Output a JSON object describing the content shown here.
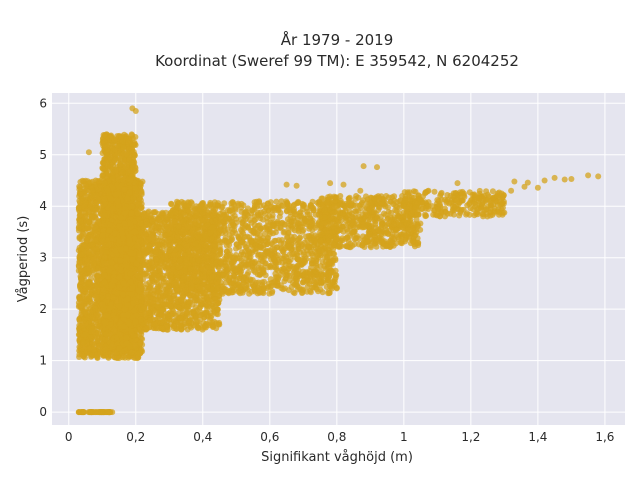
{
  "chart_data": {
    "type": "scatter",
    "title": "År 1979 - 2019",
    "subtitle": "Koordinat (Sweref 99 TM): E 359542, N 6204252",
    "xlabel": "Signifikant våghöjd (m)",
    "ylabel": "Vågperiod (s)",
    "xlim": [
      -0.05,
      1.66
    ],
    "ylim": [
      -0.25,
      6.2
    ],
    "x_ticks": [
      0,
      0.2,
      0.4,
      0.6,
      0.8,
      1,
      1.2,
      1.4,
      1.6
    ],
    "x_tick_labels": [
      "0",
      "0,2",
      "0,4",
      "0,6",
      "0,8",
      "1",
      "1,2",
      "1,4",
      "1,6"
    ],
    "y_ticks": [
      0,
      1,
      2,
      3,
      4,
      5,
      6
    ],
    "y_tick_labels": [
      "0",
      "1",
      "2",
      "3",
      "4",
      "5",
      "6"
    ],
    "grid": true,
    "marker_color": "#d4a31c",
    "plot_background": "#e5e5ef",
    "regions": [
      {
        "x": [
          0.03,
          0.13
        ],
        "y": [
          0,
          0
        ],
        "n": 60
      },
      {
        "x": [
          0.03,
          0.07
        ],
        "y": [
          1.35,
          1.65
        ],
        "n": 60
      },
      {
        "x": [
          0.03,
          0.22
        ],
        "y": [
          1.05,
          4.5
        ],
        "n": 2200
      },
      {
        "x": [
          0.1,
          0.2
        ],
        "y": [
          1.15,
          5.4
        ],
        "n": 1600
      },
      {
        "x": [
          0.15,
          0.45
        ],
        "y": [
          1.6,
          3.9
        ],
        "n": 1600
      },
      {
        "x": [
          0.3,
          0.8
        ],
        "y": [
          2.3,
          4.1
        ],
        "n": 1500
      },
      {
        "x": [
          0.75,
          1.05
        ],
        "y": [
          3.2,
          4.2
        ],
        "n": 600
      },
      {
        "x": [
          1.0,
          1.3
        ],
        "y": [
          3.8,
          4.3
        ],
        "n": 250
      }
    ],
    "points": [
      {
        "x": 0.19,
        "y": 5.9
      },
      {
        "x": 0.2,
        "y": 5.85
      },
      {
        "x": 0.06,
        "y": 5.05
      },
      {
        "x": 0.88,
        "y": 4.78
      },
      {
        "x": 0.92,
        "y": 4.76
      },
      {
        "x": 0.65,
        "y": 4.42
      },
      {
        "x": 0.68,
        "y": 4.4
      },
      {
        "x": 0.78,
        "y": 4.45
      },
      {
        "x": 0.82,
        "y": 4.42
      },
      {
        "x": 0.87,
        "y": 4.3
      },
      {
        "x": 1.16,
        "y": 4.45
      },
      {
        "x": 1.33,
        "y": 4.48
      },
      {
        "x": 1.37,
        "y": 4.46
      },
      {
        "x": 1.42,
        "y": 4.5
      },
      {
        "x": 1.45,
        "y": 4.55
      },
      {
        "x": 1.48,
        "y": 4.52
      },
      {
        "x": 1.5,
        "y": 4.53
      },
      {
        "x": 1.55,
        "y": 4.6
      },
      {
        "x": 1.58,
        "y": 4.58
      },
      {
        "x": 1.4,
        "y": 4.36
      },
      {
        "x": 1.36,
        "y": 4.38
      },
      {
        "x": 1.32,
        "y": 4.3
      },
      {
        "x": 1.28,
        "y": 4.25
      },
      {
        "x": 1.24,
        "y": 4.2
      },
      {
        "x": 0.36,
        "y": 1.78
      },
      {
        "x": 0.38,
        "y": 1.75
      }
    ]
  }
}
